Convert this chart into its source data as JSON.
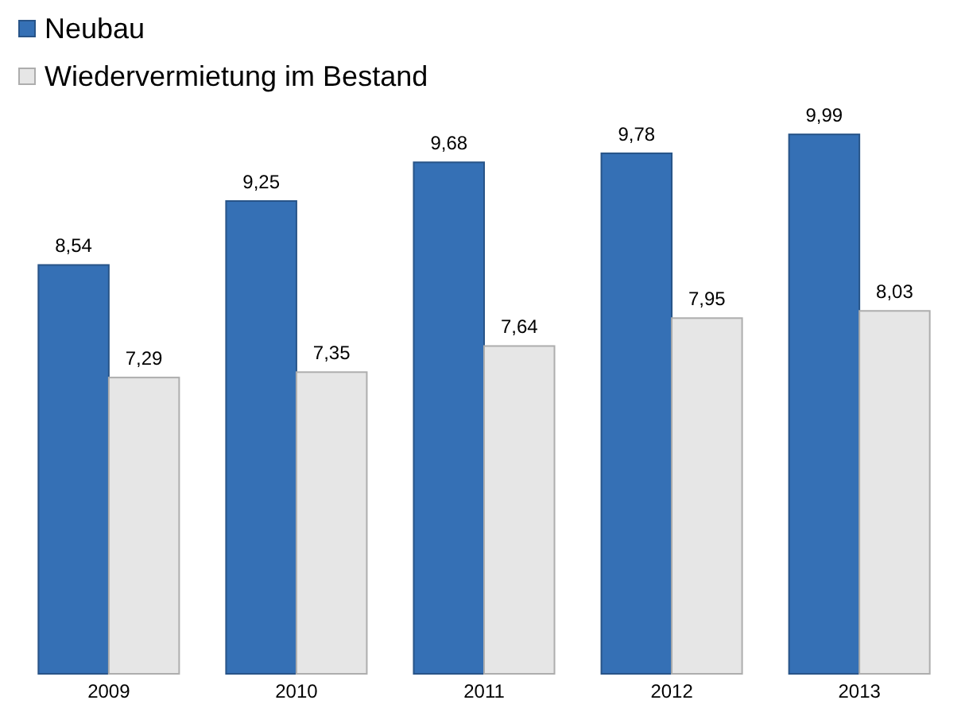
{
  "chart_data": {
    "type": "bar",
    "categories": [
      "2009",
      "2010",
      "2011",
      "2012",
      "2013"
    ],
    "series": [
      {
        "name": "Neubau",
        "color": "#3570b5",
        "values": [
          8.54,
          9.25,
          9.68,
          9.78,
          9.99
        ],
        "value_labels": [
          "8,54",
          "9,25",
          "9,68",
          "9,78",
          "9,99"
        ]
      },
      {
        "name": "Wiedervermietung im Bestand",
        "color": "#e6e6e6",
        "values": [
          7.29,
          7.35,
          7.64,
          7.95,
          8.03
        ],
        "value_labels": [
          "7,29",
          "7,35",
          "7,64",
          "7,95",
          "8,03"
        ]
      }
    ],
    "ylim": [
      4,
      10
    ],
    "tick_labels": "x",
    "legend": "top left"
  }
}
